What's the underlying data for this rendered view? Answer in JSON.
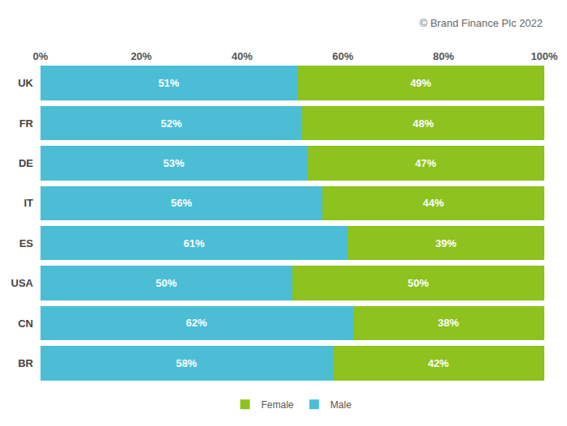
{
  "chart_data": {
    "type": "bar",
    "orientation": "horizontal",
    "stacked": true,
    "data_labels": true,
    "grid": false,
    "legend": "bottom",
    "annotations": [
      "© Brand Finance Plc 2022"
    ],
    "categories": [
      "UK",
      "FR",
      "DE",
      "IT",
      "ES",
      "USA",
      "CN",
      "BR"
    ],
    "series": [
      {
        "name": "Male",
        "color": "#4bbed6",
        "values": [
          51,
          52,
          53,
          56,
          61,
          50,
          62,
          58
        ],
        "value_labels": [
          "51%",
          "52%",
          "53%",
          "56%",
          "61%",
          "50%",
          "62%",
          "58%"
        ]
      },
      {
        "name": "Female",
        "color": "#8dc21f",
        "values": [
          49,
          48,
          47,
          44,
          39,
          50,
          38,
          42
        ],
        "value_labels": [
          "49%",
          "48%",
          "47%",
          "44%",
          "39%",
          "50%",
          "38%",
          "42%"
        ]
      }
    ],
    "xlim": [
      0,
      100
    ],
    "xticks": [
      {
        "value": 0,
        "label": "0%"
      },
      {
        "value": 20,
        "label": "20%"
      },
      {
        "value": 40,
        "label": "40%"
      },
      {
        "value": 60,
        "label": "60%"
      },
      {
        "value": 80,
        "label": "80%"
      },
      {
        "value": 100,
        "label": "100%"
      }
    ]
  }
}
